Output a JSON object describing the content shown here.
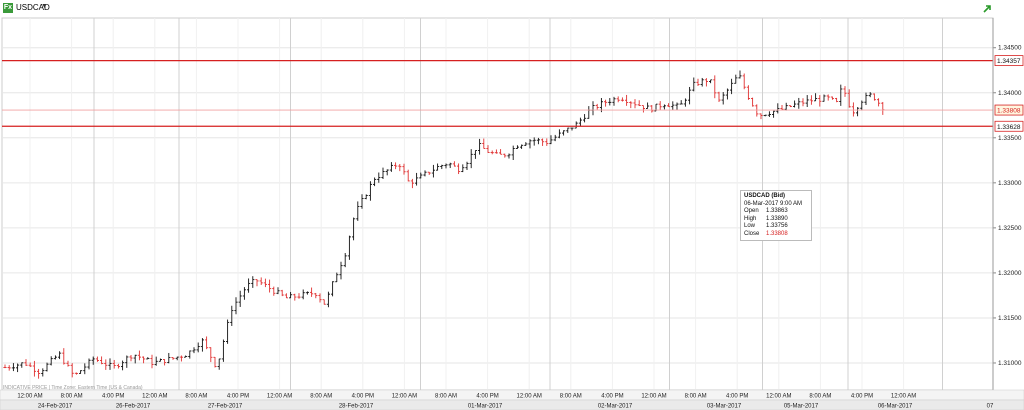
{
  "header": {
    "symbol": "USDCAD",
    "badge": "Fx",
    "dropdown_icon": "caret-down-icon",
    "status_icon": "connection-arrow-icon"
  },
  "colors": {
    "up": "#111111",
    "down": "#e03030",
    "level_line": "#d62020",
    "last_line": "#f0a0a0",
    "grid": "#e6e6e6",
    "axis_text": "#222222"
  },
  "tooltip": {
    "title": "USDCAD (Bid)",
    "datetime": "06-Mar-2017 9:00 AM",
    "rows": [
      {
        "k": "Open",
        "v": "1.33863"
      },
      {
        "k": "High",
        "v": "1.33890"
      },
      {
        "k": "Low",
        "v": "1.33756"
      },
      {
        "k": "Close",
        "v": "1.33808"
      }
    ]
  },
  "footnote": "INDICATIVE PRICE | Time Zone: Eastern Time (US & Canada)",
  "chart_data": {
    "type": "ohlc",
    "ylim": [
      1.307,
      1.3483
    ],
    "y_ticks": [
      "1.34500",
      "1.34000",
      "1.33500",
      "1.33000",
      "1.32500",
      "1.32000",
      "1.31500",
      "1.31000"
    ],
    "y_tick_values": [
      1.345,
      1.34,
      1.335,
      1.33,
      1.325,
      1.32,
      1.315,
      1.31
    ],
    "horizontal_levels": [
      {
        "label": "1.34357",
        "value": 1.34357,
        "style": "level"
      },
      {
        "label": "1.33808",
        "value": 1.33808,
        "style": "last"
      },
      {
        "label": "1.33628",
        "value": 1.33628,
        "style": "level"
      }
    ],
    "time_labels": [
      "12:00 AM",
      "8:00 AM",
      "4:00 PM",
      "12:00 AM",
      "8:00 AM",
      "4:00 PM",
      "12:00 AM",
      "8:00 AM",
      "4:00 PM",
      "12:00 AM",
      "8:00 AM",
      "4:00 PM",
      "12:00 AM",
      "8:00 AM",
      "4:00 PM",
      "12:00 AM",
      "8:00 AM",
      "4:00 PM",
      "12:00 AM",
      "8:00 AM",
      "4:00 PM",
      "12:00 AM"
    ],
    "date_labels": [
      "24-Feb-2017",
      "26-Feb-2017",
      "27-Feb-2017",
      "28-Feb-2017",
      "01-Mar-2017",
      "02-Mar-2017",
      "03-Mar-2017",
      "05-Mar-2017",
      "06-Mar-2017",
      "07"
    ],
    "price_path": [
      [
        0.0,
        1.3095
      ],
      [
        0.02,
        1.31
      ],
      [
        0.035,
        1.309
      ],
      [
        0.055,
        1.311
      ],
      [
        0.07,
        1.3085
      ],
      [
        0.09,
        1.3105
      ],
      [
        0.11,
        1.3095
      ],
      [
        0.13,
        1.311
      ],
      [
        0.15,
        1.31
      ],
      [
        0.17,
        1.3105
      ],
      [
        0.185,
        1.311
      ],
      [
        0.2,
        1.3125
      ],
      [
        0.215,
        1.3095
      ],
      [
        0.23,
        1.316
      ],
      [
        0.245,
        1.3185
      ],
      [
        0.255,
        1.3192
      ],
      [
        0.27,
        1.3182
      ],
      [
        0.285,
        1.3172
      ],
      [
        0.3,
        1.3175
      ],
      [
        0.315,
        1.3178
      ],
      [
        0.325,
        1.3165
      ],
      [
        0.335,
        1.3195
      ],
      [
        0.345,
        1.322
      ],
      [
        0.355,
        1.3265
      ],
      [
        0.365,
        1.3285
      ],
      [
        0.375,
        1.3305
      ],
      [
        0.39,
        1.3315
      ],
      [
        0.4,
        1.3322
      ],
      [
        0.41,
        1.33
      ],
      [
        0.42,
        1.3305
      ],
      [
        0.43,
        1.3312
      ],
      [
        0.44,
        1.3318
      ],
      [
        0.45,
        1.3322
      ],
      [
        0.46,
        1.3315
      ],
      [
        0.47,
        1.3325
      ],
      [
        0.48,
        1.3342
      ],
      [
        0.49,
        1.3335
      ],
      [
        0.5,
        1.333
      ],
      [
        0.51,
        1.3332
      ],
      [
        0.52,
        1.3342
      ],
      [
        0.535,
        1.3348
      ],
      [
        0.55,
        1.3345
      ],
      [
        0.565,
        1.3355
      ],
      [
        0.58,
        1.3365
      ],
      [
        0.595,
        1.3382
      ],
      [
        0.61,
        1.339
      ],
      [
        0.625,
        1.3395
      ],
      [
        0.64,
        1.3388
      ],
      [
        0.655,
        1.3382
      ],
      [
        0.67,
        1.3388
      ],
      [
        0.685,
        1.3384
      ],
      [
        0.7,
        1.341
      ],
      [
        0.715,
        1.3415
      ],
      [
        0.725,
        1.339
      ],
      [
        0.735,
        1.3405
      ],
      [
        0.745,
        1.342
      ],
      [
        0.755,
        1.3395
      ],
      [
        0.765,
        1.3375
      ],
      [
        0.775,
        1.3378
      ],
      [
        0.79,
        1.3382
      ],
      [
        0.805,
        1.3388
      ],
      [
        0.82,
        1.3392
      ],
      [
        0.835,
        1.3394
      ],
      [
        0.845,
        1.3388
      ],
      [
        0.85,
        1.3408
      ],
      [
        0.86,
        1.3378
      ],
      [
        0.87,
        1.3392
      ],
      [
        0.88,
        1.3398
      ],
      [
        0.89,
        1.3385
      ],
      [
        0.895,
        1.3381
      ]
    ]
  }
}
